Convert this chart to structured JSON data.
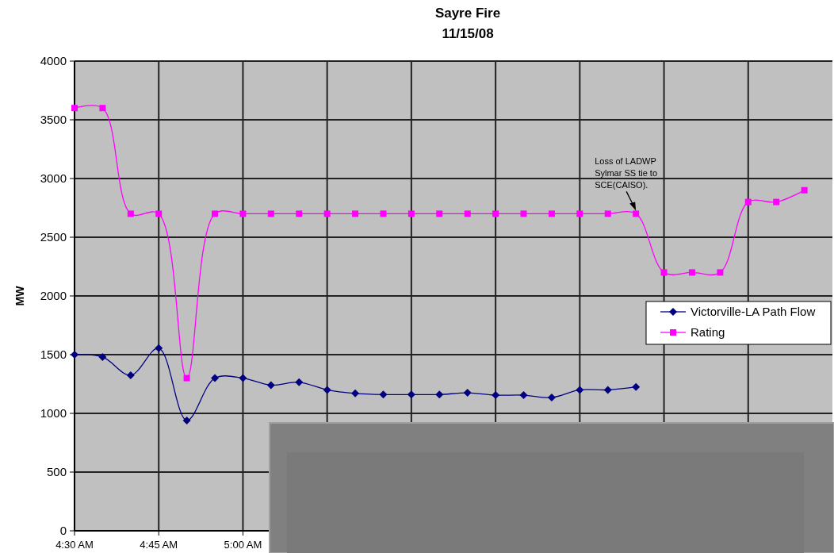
{
  "chart_data": {
    "type": "line",
    "title": "Sayre Fire",
    "subtitle": "11/15/08",
    "ylabel": "MW",
    "x": [
      4.5,
      4.5833,
      4.6667,
      4.75,
      4.8333,
      4.9167,
      5.0,
      5.0833,
      5.1667,
      5.25,
      5.3333,
      5.4167,
      5.5,
      5.5833,
      5.6667,
      5.75,
      5.8333,
      5.9167,
      6.0,
      6.0833,
      6.1667,
      6.25,
      6.3333,
      6.4167,
      6.5,
      6.5833,
      6.6667
    ],
    "series": [
      {
        "name": "Victorville-LA Path Flow",
        "color": "#000080",
        "marker": "diamond",
        "values": [
          1500,
          1480,
          1325,
          1555,
          940,
          1300,
          1300,
          1240,
          1265,
          1200,
          1170,
          1160,
          1160,
          1160,
          1175,
          1155,
          1155,
          1135,
          1200,
          1200,
          1225,
          null,
          null,
          null,
          null,
          null,
          null
        ]
      },
      {
        "name": "Rating",
        "color": "#ff00ff",
        "marker": "square",
        "values": [
          3600,
          3600,
          2700,
          2700,
          1300,
          2700,
          2700,
          2700,
          2700,
          2700,
          2700,
          2700,
          2700,
          2700,
          2700,
          2700,
          2700,
          2700,
          2700,
          2700,
          2700,
          2200,
          2200,
          2200,
          2800,
          2800,
          2900
        ]
      }
    ],
    "xlim": [
      4.5,
      6.75
    ],
    "xticks": [
      {
        "value": 4.5,
        "label": "4:30 AM"
      },
      {
        "value": 4.75,
        "label": "4:45 AM"
      },
      {
        "value": 5.0,
        "label": "5:00 AM"
      },
      {
        "value": 5.25,
        "label": null
      },
      {
        "value": 5.5,
        "label": null
      },
      {
        "value": 5.75,
        "label": null
      },
      {
        "value": 6.0,
        "label": null
      },
      {
        "value": 6.25,
        "label": null
      },
      {
        "value": 6.5,
        "label": null
      }
    ],
    "ylim": [
      0,
      4000
    ],
    "yticks": [
      0,
      500,
      1000,
      1500,
      2000,
      2500,
      3000,
      3500,
      4000
    ],
    "grid": true,
    "legend": "right",
    "annotations": [
      {
        "text": "Loss of LADWP Sylmar SS tie to SCE(CAISO).",
        "x": 6.1667,
        "y": 2700
      }
    ]
  }
}
